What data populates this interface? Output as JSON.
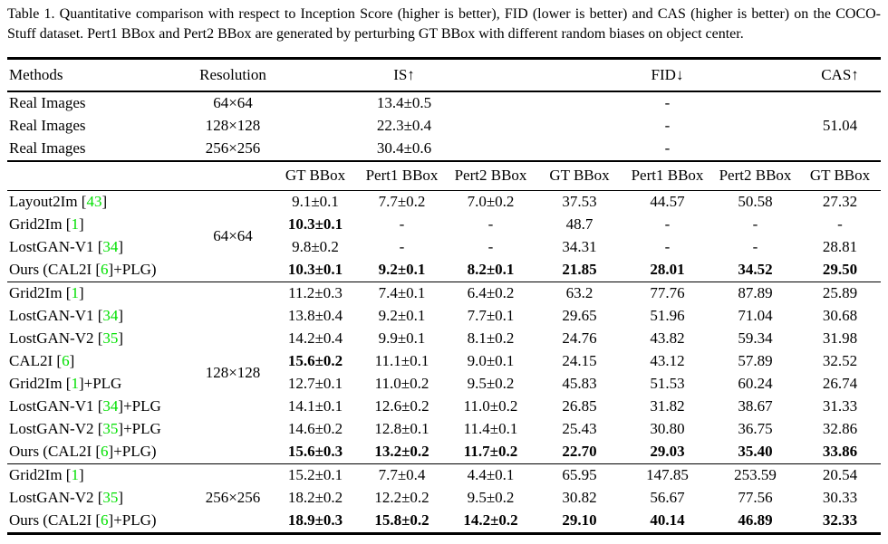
{
  "caption": "Table 1. Quantitative comparison with respect to Inception Score (higher is better), FID (lower is better) and CAS (higher is better) on the COCO-Stuff dataset. Pert1 BBox and Pert2 BBox are generated by perturbing GT BBox with different random biases on object center.",
  "colors": {
    "citation_green": "#00e000",
    "text": "#000000",
    "background": "#ffffff"
  },
  "header": {
    "methods": "Methods",
    "resolution": "Resolution",
    "is": "IS↑",
    "fid": "FID↓",
    "cas": "CAS↑",
    "sub": [
      "GT BBox",
      "Pert1 BBox",
      "Pert2 BBox",
      "GT BBox",
      "Pert1 BBox",
      "Pert2 BBox",
      "GT BBox"
    ]
  },
  "real_rows": [
    {
      "method": "Real Images",
      "resolution": "64×64",
      "is": "13.4±0.5",
      "fid": "-",
      "cas": ""
    },
    {
      "method": "Real Images",
      "resolution": "128×128",
      "is": "22.3±0.4",
      "fid": "-",
      "cas": "51.04"
    },
    {
      "method": "Real Images",
      "resolution": "256×256",
      "is": "30.4±0.6",
      "fid": "-",
      "cas": ""
    }
  ],
  "groups": [
    {
      "resolution": "64×64",
      "rows": [
        {
          "method": {
            "pre": "Layout2Im [",
            "cite": "43",
            "post": "]"
          },
          "cells": [
            "9.1±0.1",
            "7.7±0.2",
            "7.0±0.2",
            "37.53",
            "44.57",
            "50.58",
            "27.32"
          ],
          "bold": []
        },
        {
          "method": {
            "pre": "Grid2Im [",
            "cite": "1",
            "post": "]"
          },
          "cells": [
            "10.3±0.1",
            "-",
            "-",
            "48.7",
            "-",
            "-",
            "-"
          ],
          "bold": [
            0
          ]
        },
        {
          "method": {
            "pre": "LostGAN-V1 [",
            "cite": "34",
            "post": "]"
          },
          "cells": [
            "9.8±0.2",
            "-",
            "-",
            "34.31",
            "-",
            "-",
            "28.81"
          ],
          "bold": []
        },
        {
          "method": {
            "pre": "Ours (CAL2I [",
            "cite": "6",
            "post": "]+PLG)"
          },
          "cells": [
            "10.3±0.1",
            "9.2±0.1",
            "8.2±0.1",
            "21.85",
            "28.01",
            "34.52",
            "29.50"
          ],
          "bold": [
            0,
            1,
            2,
            3,
            4,
            5,
            6
          ]
        }
      ]
    },
    {
      "resolution": "128×128",
      "rows": [
        {
          "method": {
            "pre": "Grid2Im [",
            "cite": "1",
            "post": "]"
          },
          "cells": [
            "11.2±0.3",
            "7.4±0.1",
            "6.4±0.2",
            "63.2",
            "77.76",
            "87.89",
            "25.89"
          ],
          "bold": []
        },
        {
          "method": {
            "pre": "LostGAN-V1 [",
            "cite": "34",
            "post": "]"
          },
          "cells": [
            "13.8±0.4",
            "9.2±0.1",
            "7.7±0.1",
            "29.65",
            "51.96",
            "71.04",
            "30.68"
          ],
          "bold": []
        },
        {
          "method": {
            "pre": "LostGAN-V2 [",
            "cite": "35",
            "post": "]"
          },
          "cells": [
            "14.2±0.4",
            "9.9±0.1",
            "8.1±0.2",
            "24.76",
            "43.82",
            "59.34",
            "31.98"
          ],
          "bold": []
        },
        {
          "method": {
            "pre": "CAL2I [",
            "cite": "6",
            "post": "]"
          },
          "cells": [
            "15.6±0.2",
            "11.1±0.1",
            "9.0±0.1",
            "24.15",
            "43.12",
            "57.89",
            "32.52"
          ],
          "bold": [
            0
          ]
        },
        {
          "method": {
            "pre": "Grid2Im [",
            "cite": "1",
            "post": "]+PLG"
          },
          "cells": [
            "12.7±0.1",
            "11.0±0.2",
            "9.5±0.2",
            "45.83",
            "51.53",
            "60.24",
            "26.74"
          ],
          "bold": []
        },
        {
          "method": {
            "pre": "LostGAN-V1 [",
            "cite": "34",
            "post": "]+PLG"
          },
          "cells": [
            "14.1±0.1",
            "12.6±0.2",
            "11.0±0.2",
            "26.85",
            "31.82",
            "38.67",
            "31.33"
          ],
          "bold": []
        },
        {
          "method": {
            "pre": "LostGAN-V2 [",
            "cite": "35",
            "post": "]+PLG"
          },
          "cells": [
            "14.6±0.2",
            "12.8±0.1",
            "11.4±0.1",
            "25.43",
            "30.80",
            "36.75",
            "32.86"
          ],
          "bold": []
        },
        {
          "method": {
            "pre": "Ours (CAL2I [",
            "cite": "6",
            "post": "]+PLG)"
          },
          "cells": [
            "15.6±0.3",
            "13.2±0.2",
            "11.7±0.2",
            "22.70",
            "29.03",
            "35.40",
            "33.86"
          ],
          "bold": [
            0,
            1,
            2,
            3,
            4,
            5,
            6
          ]
        }
      ]
    },
    {
      "resolution": "256×256",
      "rows": [
        {
          "method": {
            "pre": "Grid2Im [",
            "cite": "1",
            "post": "]"
          },
          "cells": [
            "15.2±0.1",
            "7.7±0.4",
            "4.4±0.1",
            "65.95",
            "147.85",
            "253.59",
            "20.54"
          ],
          "bold": []
        },
        {
          "method": {
            "pre": "LostGAN-V2 [",
            "cite": "35",
            "post": "]"
          },
          "cells": [
            "18.2±0.2",
            "12.2±0.2",
            "9.5±0.2",
            "30.82",
            "56.67",
            "77.56",
            "30.33"
          ],
          "bold": []
        },
        {
          "method": {
            "pre": "Ours (CAL2I [",
            "cite": "6",
            "post": "]+PLG)"
          },
          "cells": [
            "18.9±0.3",
            "15.8±0.2",
            "14.2±0.2",
            "29.10",
            "40.14",
            "46.89",
            "32.33"
          ],
          "bold": [
            0,
            1,
            2,
            3,
            4,
            5,
            6
          ]
        }
      ]
    }
  ]
}
